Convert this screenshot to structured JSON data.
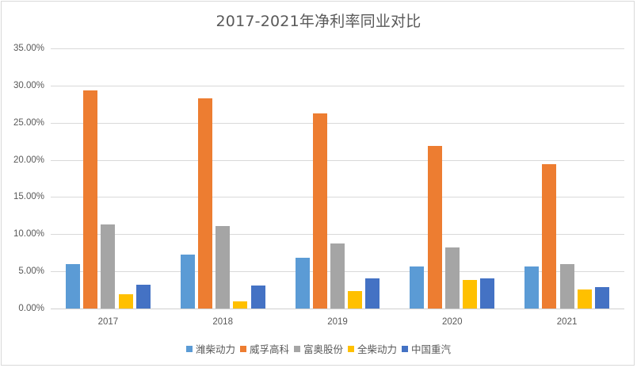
{
  "chart_data": {
    "type": "bar",
    "title": "2017-2021年净利率同业对比",
    "xlabel": "",
    "ylabel": "",
    "ylim": [
      0,
      35
    ],
    "y_unit": "%",
    "y_ticks": [
      "0.00%",
      "5.00%",
      "10.00%",
      "15.00%",
      "20.00%",
      "25.00%",
      "30.00%",
      "35.00%"
    ],
    "categories": [
      "2017",
      "2018",
      "2019",
      "2020",
      "2021"
    ],
    "series": [
      {
        "name": "潍柴动力",
        "color": "#5B9BD5",
        "values": [
          6.0,
          7.3,
          6.8,
          5.7,
          5.7
        ]
      },
      {
        "name": "威孚高科",
        "color": "#ED7D31",
        "values": [
          29.3,
          28.3,
          26.2,
          21.9,
          19.4
        ]
      },
      {
        "name": "富奥股份",
        "color": "#A5A5A5",
        "values": [
          11.3,
          11.1,
          8.8,
          8.2,
          6.0
        ]
      },
      {
        "name": "全柴动力",
        "color": "#FFC000",
        "values": [
          1.9,
          1.0,
          2.3,
          3.8,
          2.6
        ]
      },
      {
        "name": "中国重汽",
        "color": "#4472C4",
        "values": [
          3.2,
          3.1,
          4.05,
          4.05,
          2.9
        ]
      }
    ],
    "grid": true,
    "legend_position": "bottom"
  }
}
